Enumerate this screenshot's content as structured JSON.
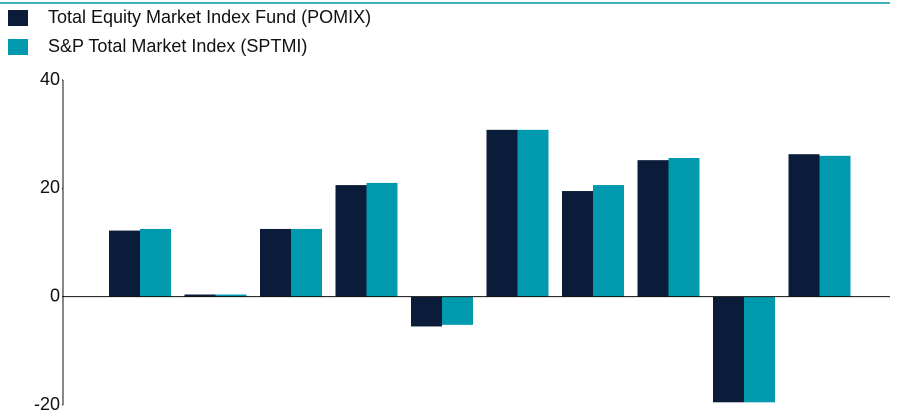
{
  "chart_data": {
    "type": "bar",
    "categories": [
      null,
      null,
      null,
      null,
      null,
      null,
      null,
      null,
      null,
      null
    ],
    "series": [
      {
        "name": "Total Equity Market Index Fund (POMIX)",
        "color": "#0b1b3a",
        "values": [
          12.2,
          0.4,
          12.5,
          20.6,
          -5.5,
          30.8,
          19.5,
          25.2,
          -19.5,
          26.3
        ]
      },
      {
        "name": "S&P Total Market Index (SPTMI)",
        "color": "#0099ad",
        "values": [
          12.5,
          0.4,
          12.5,
          21.0,
          -5.2,
          30.8,
          20.6,
          25.6,
          -19.5,
          26.0
        ]
      }
    ],
    "ylim": [
      -20,
      40
    ],
    "yticks": [
      -20,
      0,
      20,
      40
    ],
    "grid": false,
    "legend": "top-left"
  }
}
